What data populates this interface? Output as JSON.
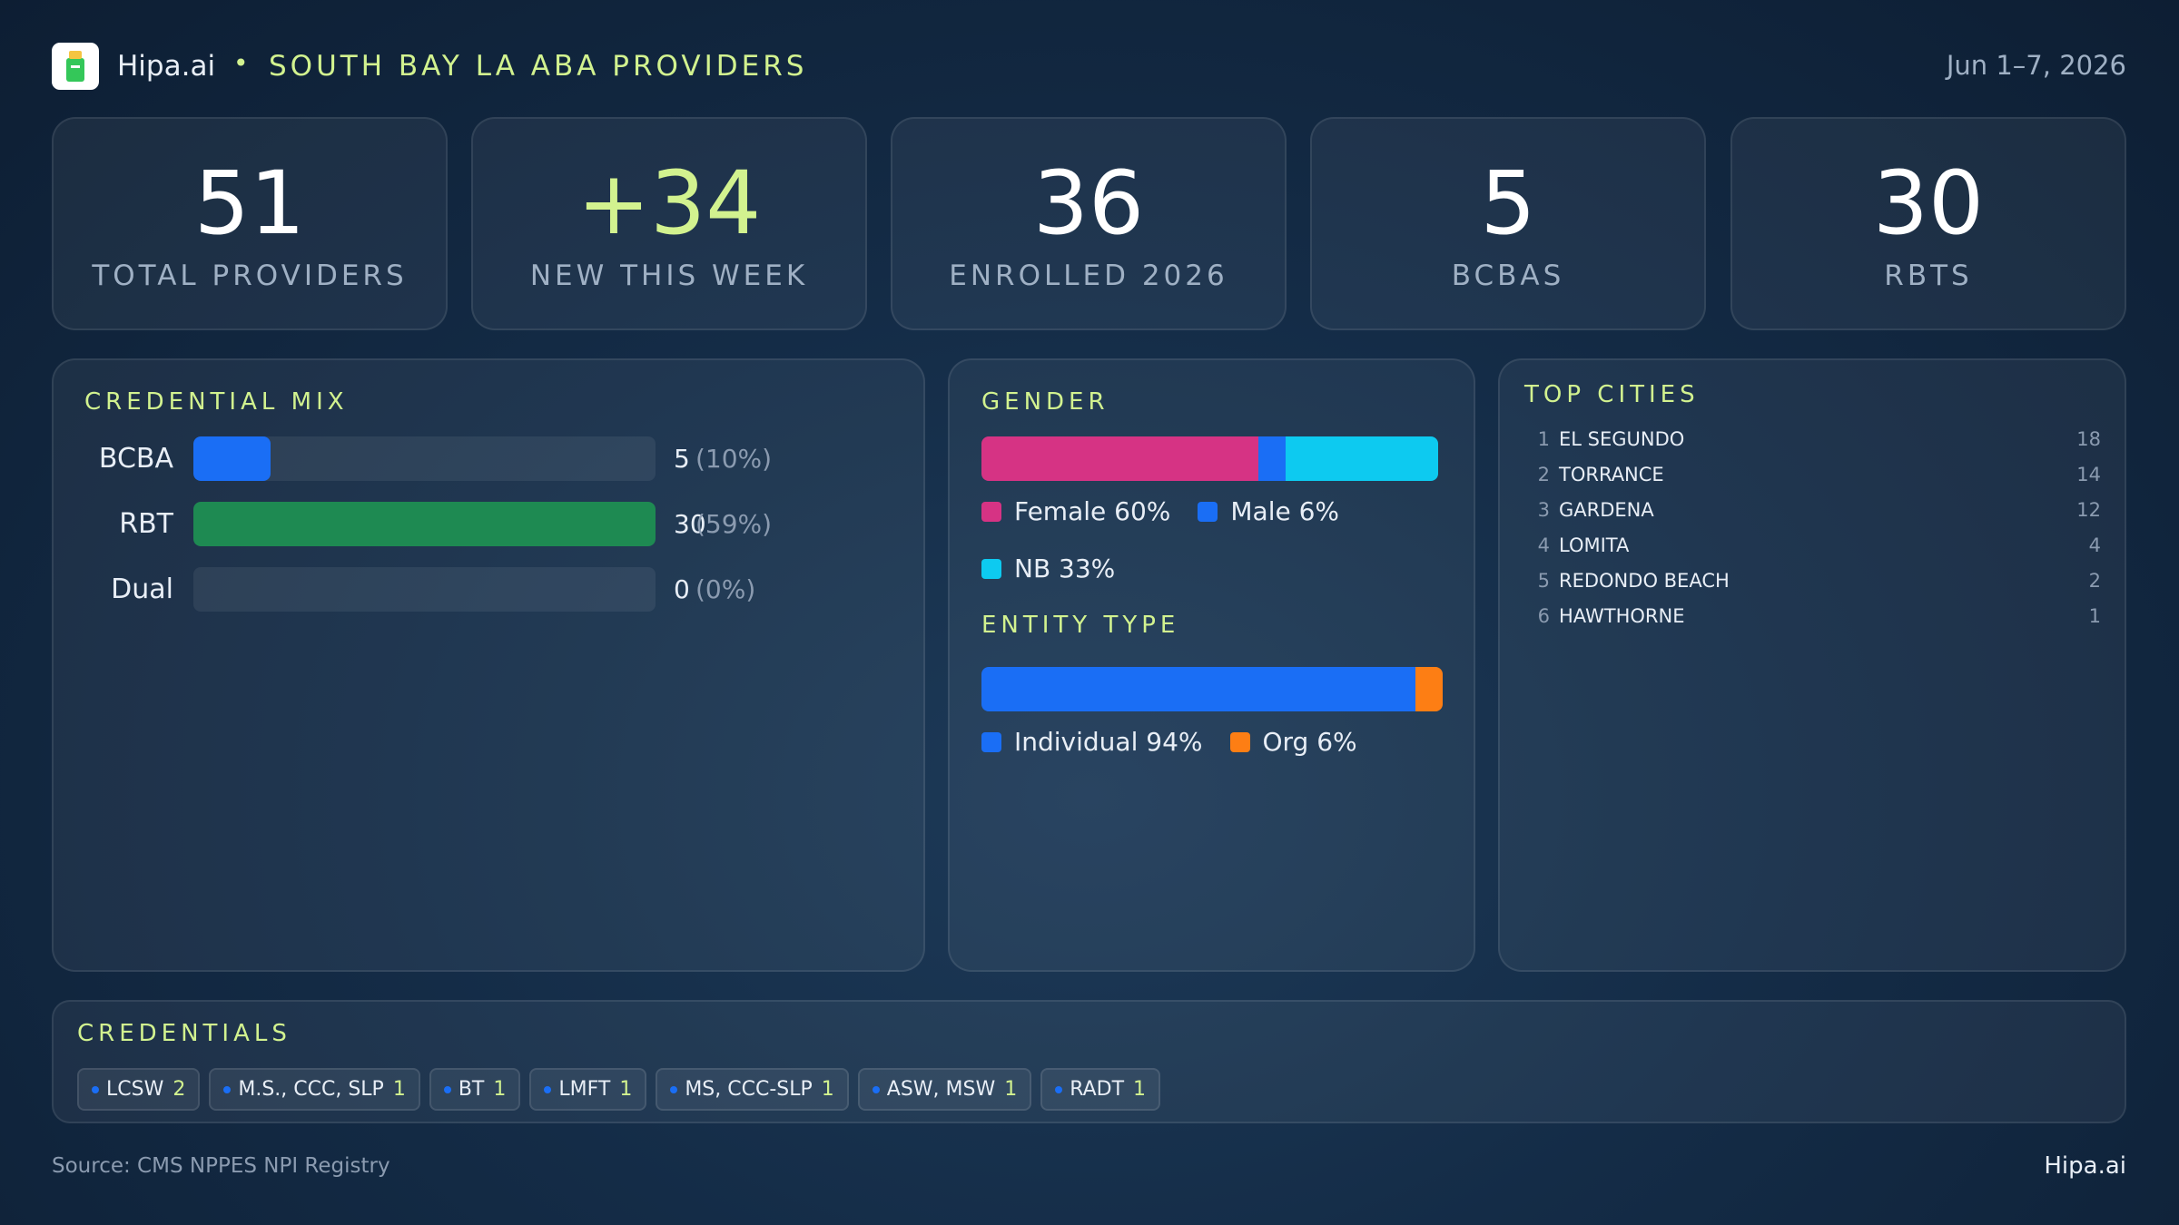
{
  "header": {
    "brand": "Hipa.ai",
    "separator": "•",
    "title": "SOUTH BAY LA ABA PROVIDERS",
    "date": "Jun 1–7, 2026"
  },
  "kpis": [
    {
      "value": 51,
      "label": "TOTAL PROVIDERS"
    },
    {
      "value": "+34",
      "label": "NEW THIS WEEK",
      "highlight": true
    },
    {
      "value": 36,
      "label": "ENROLLED 2026"
    },
    {
      "value": 5,
      "label": "BCBAS"
    },
    {
      "value": 30,
      "label": "RBTS"
    }
  ],
  "credential_mix": {
    "title": "CREDENTIAL MIX",
    "rows": [
      {
        "label": "BCBA",
        "value": 5,
        "percent_label": "(10%)",
        "color": "#1a6ef5"
      },
      {
        "label": "RBT",
        "value": 30,
        "percent_label": "(59%)",
        "color": "#1e8a52"
      },
      {
        "label": "Dual",
        "value": 0,
        "percent_label": "(0%)",
        "color": "#1a6ef5"
      }
    ]
  },
  "gender": {
    "title": "GENDER",
    "segments": [
      {
        "label": "Female 60%",
        "value": 60,
        "color": "#d63384"
      },
      {
        "label": "Male 6%",
        "value": 6,
        "color": "#1a6ef5"
      },
      {
        "label": "NB 33%",
        "value": 33,
        "color": "#0dcaf0"
      }
    ]
  },
  "entity_type": {
    "title": "ENTITY TYPE",
    "segments": [
      {
        "label": "Individual 94%",
        "value": 94,
        "color": "#1a6ef5"
      },
      {
        "label": "Org 6%",
        "value": 6,
        "color": "#fd7e14"
      }
    ]
  },
  "top_cities": {
    "title": "TOP CITIES",
    "rows": [
      {
        "rank": 1,
        "name": "EL SEGUNDO",
        "count": 18
      },
      {
        "rank": 2,
        "name": "TORRANCE",
        "count": 14
      },
      {
        "rank": 3,
        "name": "GARDENA",
        "count": 12
      },
      {
        "rank": 4,
        "name": "LOMITA",
        "count": 4
      },
      {
        "rank": 5,
        "name": "REDONDO BEACH",
        "count": 2
      },
      {
        "rank": 6,
        "name": "HAWTHORNE",
        "count": 1
      }
    ]
  },
  "credentials": {
    "title": "CREDENTIALS",
    "chips": [
      {
        "name": "LCSW",
        "count": 2
      },
      {
        "name": "M.S., CCC, SLP",
        "count": 1
      },
      {
        "name": "BT",
        "count": 1
      },
      {
        "name": "LMFT",
        "count": 1
      },
      {
        "name": "MS, CCC-SLP",
        "count": 1
      },
      {
        "name": "ASW, MSW",
        "count": 1
      },
      {
        "name": "RADT",
        "count": 1
      }
    ]
  },
  "footer": {
    "source": "Source: CMS NPPES NPI Registry",
    "brand": "Hipa.ai"
  }
}
